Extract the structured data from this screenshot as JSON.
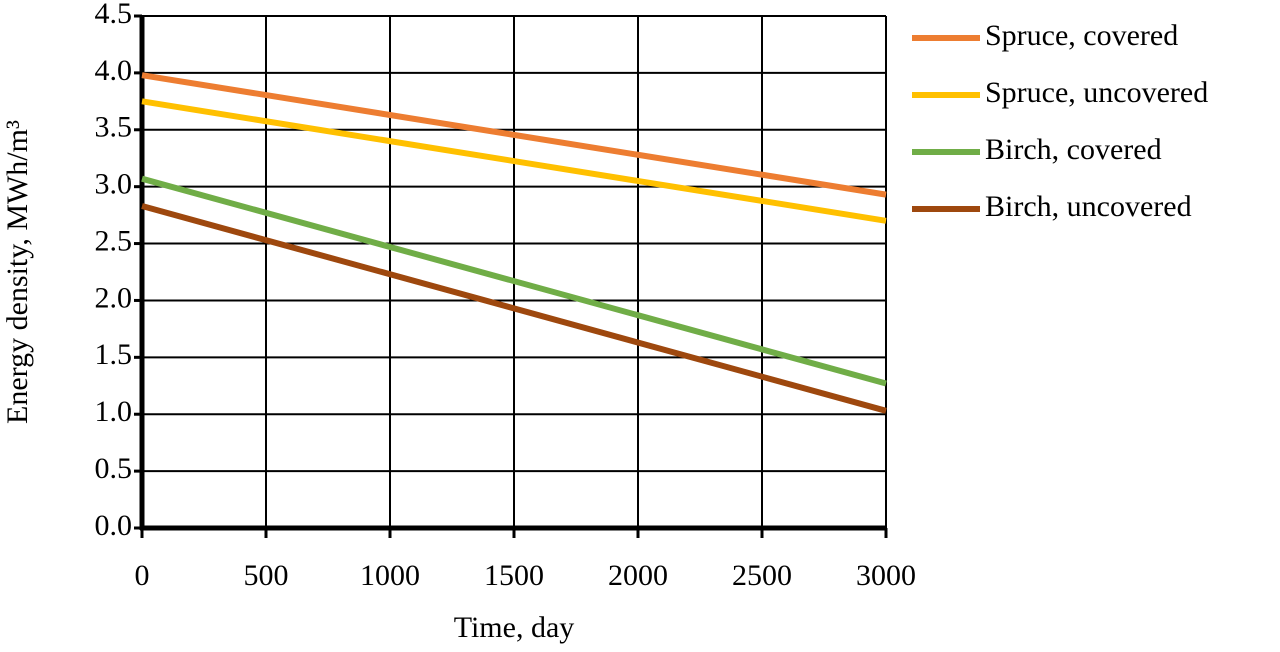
{
  "chart_data": {
    "type": "line",
    "x_label": "Time, day",
    "y_label": "Energy density, MWh/m³",
    "x": [
      0,
      3000
    ],
    "series": [
      {
        "name": "Spruce, covered",
        "color": "#ed7d31",
        "values": [
          3.98,
          2.93
        ]
      },
      {
        "name": "Spruce, uncovered",
        "color": "#ffc000",
        "values": [
          3.75,
          2.7
        ]
      },
      {
        "name": "Birch, covered",
        "color": "#70ad47",
        "values": [
          3.07,
          1.27
        ]
      },
      {
        "name": "Birch, uncovered",
        "color": "#9e480e",
        "values": [
          2.83,
          1.03
        ]
      }
    ],
    "xlim": [
      0,
      3000
    ],
    "xticks": [
      0,
      500,
      1000,
      1500,
      2000,
      2500,
      3000
    ],
    "ylim": [
      0,
      4.5
    ],
    "yticks": [
      {
        "value": 0,
        "label": "0.0"
      },
      0.5,
      {
        "value": 1,
        "label": "1.0"
      },
      1.5,
      {
        "value": 2,
        "label": "2.0"
      },
      2.5,
      {
        "value": 3,
        "label": "3.0"
      },
      3.5,
      {
        "value": 4,
        "label": "4.0"
      },
      4.5
    ],
    "grid": true,
    "legend": "right"
  }
}
